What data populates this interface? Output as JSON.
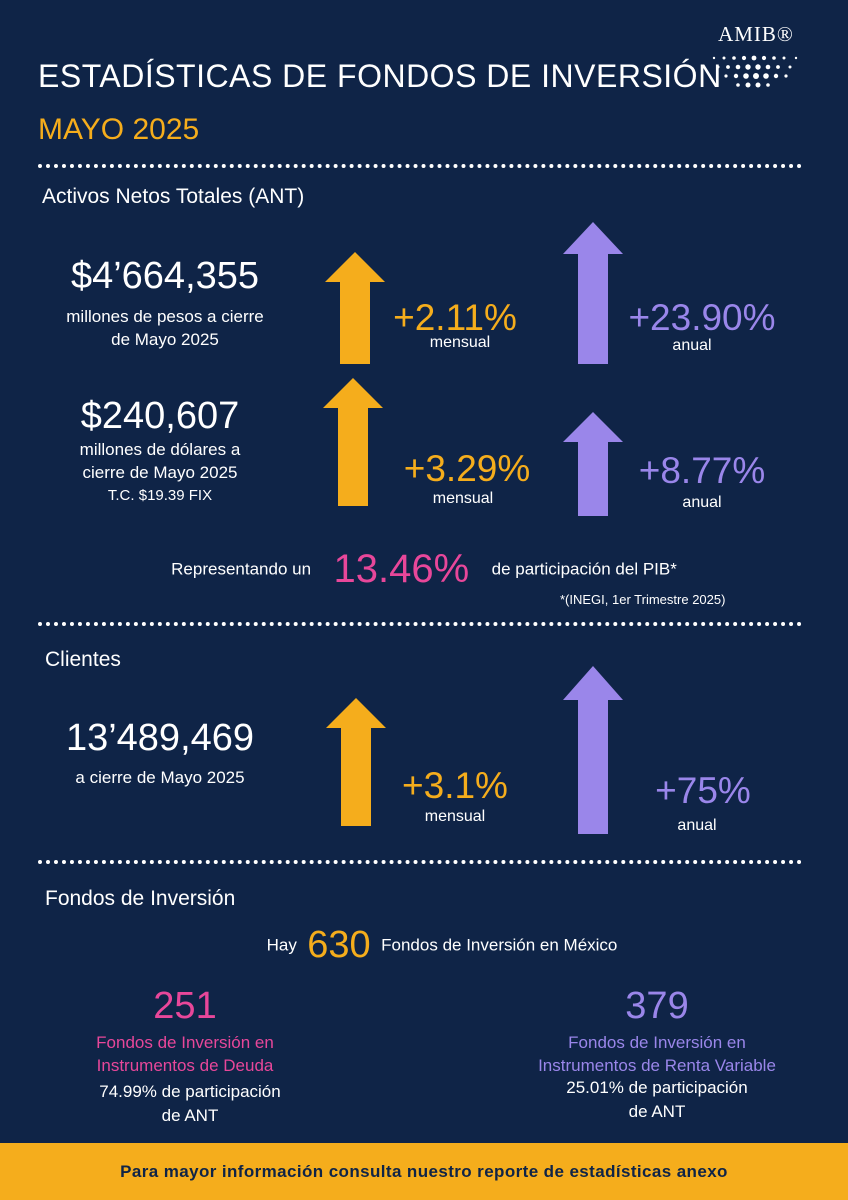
{
  "header": {
    "title": "ESTADÍSTICAS DE FONDOS DE INVERSIÓN",
    "month": "MAYO 2025",
    "logo_text": "AMIB®"
  },
  "colors": {
    "background": "#0f2447",
    "orange": "#f5ad1c",
    "purple": "#9a86ea",
    "pink": "#e8479a"
  },
  "ant": {
    "section_title": "Activos Netos Totales (ANT)",
    "pesos": {
      "value": "$4’664,355",
      "desc_line1": "millones de pesos a cierre",
      "desc_line2": "de Mayo 2025",
      "monthly_pct": "+2.11%",
      "monthly_label": "mensual",
      "annual_pct": "+23.90%",
      "annual_label": "anual"
    },
    "dollars": {
      "value": "$240,607",
      "desc_line1": "millones de dólares a",
      "desc_line2": "cierre de Mayo 2025",
      "desc_line3": "T.C. $19.39 FIX",
      "monthly_pct": "+3.29%",
      "monthly_label": "mensual",
      "annual_pct": "+8.77%",
      "annual_label": "anual"
    },
    "pib": {
      "prefix": "Representando un",
      "value": "13.46%",
      "suffix": "de participación del PIB*",
      "note": "*(INEGI, 1er  Trimestre 2025)"
    }
  },
  "clients": {
    "section_title": "Clientes",
    "value": "13’489,469",
    "desc": "a cierre de Mayo 2025",
    "monthly_pct": "+3.1%",
    "monthly_label": "mensual",
    "annual_pct": "+75%",
    "annual_label": "anual"
  },
  "funds": {
    "section_title": "Fondos de Inversión",
    "total_prefix": "Hay",
    "total": "630",
    "total_suffix": "Fondos de Inversión en México",
    "debt": {
      "count": "251",
      "label_line1": "Fondos de Inversión en",
      "label_line2": "Instrumentos de Deuda",
      "share_line1": "74.99% de participación",
      "share_line2": "de ANT"
    },
    "equity": {
      "count": "379",
      "label_line1": "Fondos de Inversión en",
      "label_line2": "Instrumentos de Renta Variable",
      "share_line1": "25.01% de participación",
      "share_line2": "de ANT"
    }
  },
  "footer": {
    "text": "Para mayor información consulta nuestro reporte de estadísticas anexo"
  },
  "arrows": [
    {
      "name": "pesos-monthly-arrow-icon",
      "color": "orange"
    },
    {
      "name": "pesos-annual-arrow-icon",
      "color": "purple"
    },
    {
      "name": "dollars-monthly-arrow-icon",
      "color": "orange"
    },
    {
      "name": "dollars-annual-arrow-icon",
      "color": "purple"
    },
    {
      "name": "clients-monthly-arrow-icon",
      "color": "orange"
    },
    {
      "name": "clients-annual-arrow-icon",
      "color": "purple"
    }
  ]
}
